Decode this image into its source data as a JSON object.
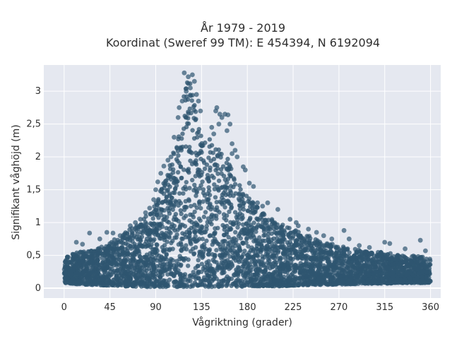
{
  "chart_data": {
    "type": "scatter",
    "title_lines": [
      "År 1979 - 2019",
      "Koordinat (Sweref 99 TM): E 454394, N 6192094"
    ],
    "xlabel": "Vågriktning (grader)",
    "ylabel": "Signifikant våghöjd (m)",
    "xlim": [
      -20,
      370
    ],
    "ylim": [
      -0.15,
      3.4
    ],
    "x_ticks": [
      0,
      45,
      90,
      135,
      180,
      225,
      270,
      315,
      360
    ],
    "x_tick_labels": [
      "0",
      "45",
      "90",
      "135",
      "180",
      "225",
      "270",
      "315",
      "360"
    ],
    "y_ticks": [
      0,
      0.5,
      1,
      1.5,
      2,
      2.5,
      3
    ],
    "y_tick_labels": [
      "0",
      "0,5",
      "1",
      "1,5",
      "2",
      "2,5",
      "3"
    ],
    "grid": true,
    "legend": "none",
    "marker_color": "#2f5570",
    "plot_bg": "#e5e8f0",
    "envelope": {
      "x": [
        0,
        15,
        30,
        45,
        60,
        75,
        90,
        100,
        110,
        115,
        120,
        125,
        130,
        135,
        140,
        150,
        160,
        170,
        180,
        195,
        210,
        225,
        240,
        255,
        270,
        285,
        300,
        315,
        330,
        345,
        360
      ],
      "upper": [
        0.5,
        0.55,
        0.6,
        0.7,
        0.85,
        1.0,
        1.3,
        1.7,
        2.2,
        2.8,
        3.2,
        3.1,
        2.7,
        2.4,
        2.3,
        2.2,
        2.0,
        1.7,
        1.4,
        1.15,
        1.0,
        0.9,
        0.8,
        0.7,
        0.65,
        0.6,
        0.55,
        0.55,
        0.5,
        0.5,
        0.45
      ],
      "lower": [
        0.08,
        0.06,
        0.05,
        0.04,
        0.03,
        0.02,
        0.02,
        0.02,
        0.02,
        0.02,
        0.02,
        0.02,
        0.02,
        0.02,
        0.02,
        0.02,
        0.02,
        0.02,
        0.03,
        0.03,
        0.03,
        0.04,
        0.05,
        0.05,
        0.06,
        0.06,
        0.07,
        0.07,
        0.08,
        0.08,
        0.08
      ]
    },
    "outliers": [
      {
        "x": 118,
        "y": 3.28
      },
      {
        "x": 122,
        "y": 3.22
      },
      {
        "x": 126,
        "y": 3.25
      },
      {
        "x": 128,
        "y": 3.15
      },
      {
        "x": 124,
        "y": 3.05
      },
      {
        "x": 120,
        "y": 3.0
      },
      {
        "x": 116,
        "y": 2.85
      },
      {
        "x": 130,
        "y": 2.95
      },
      {
        "x": 132,
        "y": 2.85
      },
      {
        "x": 134,
        "y": 2.7
      },
      {
        "x": 112,
        "y": 2.6
      },
      {
        "x": 113,
        "y": 2.75
      },
      {
        "x": 150,
        "y": 2.75
      },
      {
        "x": 149,
        "y": 2.7
      },
      {
        "x": 153,
        "y": 2.65
      },
      {
        "x": 155,
        "y": 2.6
      },
      {
        "x": 158,
        "y": 2.65
      },
      {
        "x": 161,
        "y": 2.64
      },
      {
        "x": 163,
        "y": 2.5
      },
      {
        "x": 145,
        "y": 2.45
      },
      {
        "x": 152,
        "y": 2.5
      },
      {
        "x": 160,
        "y": 2.4
      },
      {
        "x": 147,
        "y": 2.35
      },
      {
        "x": 165,
        "y": 2.2
      },
      {
        "x": 168,
        "y": 2.1
      },
      {
        "x": 165,
        "y": 2.05
      },
      {
        "x": 170,
        "y": 2.0
      },
      {
        "x": 176,
        "y": 1.85
      },
      {
        "x": 178,
        "y": 1.8
      },
      {
        "x": 182,
        "y": 1.6
      },
      {
        "x": 186,
        "y": 1.55
      },
      {
        "x": 190,
        "y": 1.3
      },
      {
        "x": 195,
        "y": 1.25
      },
      {
        "x": 200,
        "y": 1.3
      },
      {
        "x": 210,
        "y": 1.2
      },
      {
        "x": 222,
        "y": 1.05
      },
      {
        "x": 228,
        "y": 1.0
      },
      {
        "x": 230,
        "y": 0.95
      },
      {
        "x": 240,
        "y": 0.9
      },
      {
        "x": 248,
        "y": 0.85
      },
      {
        "x": 255,
        "y": 0.8
      },
      {
        "x": 263,
        "y": 0.75
      },
      {
        "x": 275,
        "y": 0.88
      },
      {
        "x": 280,
        "y": 0.75
      },
      {
        "x": 290,
        "y": 0.65
      },
      {
        "x": 300,
        "y": 0.62
      },
      {
        "x": 315,
        "y": 0.7
      },
      {
        "x": 320,
        "y": 0.68
      },
      {
        "x": 335,
        "y": 0.6
      },
      {
        "x": 350,
        "y": 0.73
      },
      {
        "x": 355,
        "y": 0.57
      },
      {
        "x": 25,
        "y": 0.84
      },
      {
        "x": 12,
        "y": 0.7
      },
      {
        "x": 18,
        "y": 0.67
      },
      {
        "x": 35,
        "y": 0.75
      },
      {
        "x": 42,
        "y": 0.85
      },
      {
        "x": 48,
        "y": 0.84
      },
      {
        "x": 55,
        "y": 0.8
      },
      {
        "x": 65,
        "y": 0.95
      },
      {
        "x": 70,
        "y": 1.0
      },
      {
        "x": 75,
        "y": 1.05
      },
      {
        "x": 80,
        "y": 1.15
      },
      {
        "x": 84,
        "y": 1.22
      },
      {
        "x": 88,
        "y": 1.35
      },
      {
        "x": 90,
        "y": 1.5
      },
      {
        "x": 92,
        "y": 1.62
      },
      {
        "x": 95,
        "y": 1.75
      },
      {
        "x": 98,
        "y": 1.86
      },
      {
        "x": 102,
        "y": 1.95
      },
      {
        "x": 105,
        "y": 2.0
      },
      {
        "x": 108,
        "y": 2.3
      }
    ]
  }
}
